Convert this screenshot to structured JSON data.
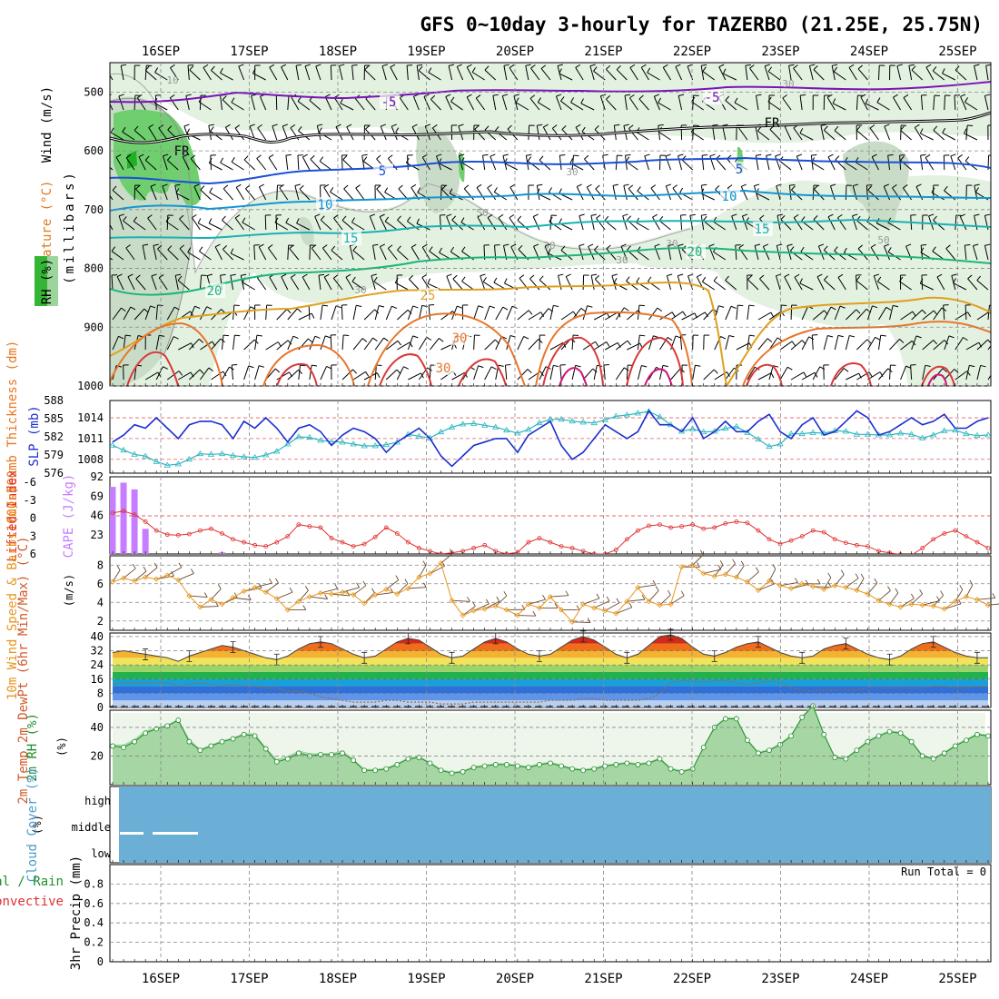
{
  "title": "GFS 0~10day 3-hourly for TAZERBO (21.25E, 25.75N)",
  "colors": {
    "grid": "#888888",
    "slp": "#1b2fcf",
    "thickness": "#2db6c0",
    "cape": "#c77dff",
    "lifted_index": "#e03030",
    "wind10": "#e8961e",
    "barb": "#6b4a2e",
    "rh2m": "#1f8f2a",
    "rh_fill": "#88c98c",
    "cloud": "#6baed6",
    "dewpoint_line": "#9b6b3a"
  },
  "chart_data": [
    {
      "panel": "upper-air",
      "type": "contour",
      "x_dates": [
        "16SEP",
        "17SEP",
        "18SEP",
        "19SEP",
        "20SEP",
        "21SEP",
        "22SEP",
        "23SEP",
        "24SEP",
        "25SEP"
      ],
      "ylabel": "(millibars)",
      "side_labels": {
        "wind": "Wind (m/s)",
        "temperature": "Temperature (°C)",
        "rh": "RH (%)"
      },
      "yticks": [
        500,
        600,
        700,
        800,
        900,
        1000
      ],
      "ylim": [
        450,
        1000
      ],
      "freezing_label": "FR",
      "isotherm_labels": [
        "-5",
        "-5",
        "5",
        "5",
        "10",
        "10",
        "15",
        "15",
        "20",
        "20",
        "25",
        "30",
        "30"
      ],
      "rh_labels": [
        "10",
        "30",
        "30",
        "30",
        "30",
        "30",
        "50",
        "50",
        "30"
      ]
    },
    {
      "panel": "slp-thickness",
      "type": "line",
      "left_label": "1000-500mb Thickness (dm)",
      "right_label": "SLP (mb)",
      "thickness_ticks": [
        576,
        579,
        582,
        585,
        588
      ],
      "thickness_ylim": [
        576,
        588
      ],
      "slp_ticks": [
        1008,
        1011,
        1014
      ],
      "slp_ylim": [
        1006,
        1016.5
      ],
      "series": [
        {
          "name": "SLP (mb)",
          "values": [
            1010.5,
            1011.5,
            1013,
            1012.5,
            1014,
            1012.5,
            1011,
            1013,
            1013.5,
            1013.5,
            1013,
            1011,
            1013.5,
            1012.5,
            1014,
            1012.5,
            1010.5,
            1012.5,
            1013,
            1012,
            1010,
            1011.5,
            1012.5,
            1012,
            1011,
            1009,
            1010.5,
            1011.5,
            1012.5,
            1011,
            1008.5,
            1007,
            1008.5,
            1010,
            1010.5,
            1011,
            1011,
            1009,
            1011.5,
            1012.5,
            1013.5,
            1010,
            1008,
            1009,
            1011,
            1013,
            1012,
            1011,
            1012,
            1015,
            1013,
            1013,
            1012,
            1014,
            1011,
            1012,
            1013.5,
            1012,
            1012,
            1013.5,
            1014.5,
            1012,
            1011,
            1013,
            1014,
            1011.5,
            1012,
            1013.5,
            1015,
            1014,
            1011.5,
            1012,
            1013,
            1014,
            1013,
            1013.5,
            1014.5,
            1012.5,
            1012.5,
            1013.5,
            1014
          ]
        },
        {
          "name": "1000-500mb Thickness (dm)",
          "values": [
            580.6,
            579.8,
            579.1,
            578.8,
            577.9,
            577.3,
            577.5,
            578.3,
            579.2,
            579.1,
            579.2,
            578.9,
            578.7,
            578.6,
            579,
            579.6,
            580.8,
            582,
            581.9,
            581.4,
            581.2,
            581.1,
            580.8,
            580.5,
            580.5,
            580.7,
            581.1,
            582.4,
            582.1,
            581.8,
            582.8,
            583.6,
            584.1,
            584.2,
            583.9,
            583.6,
            583.1,
            582.6,
            583.2,
            584.3,
            584.9,
            584.9,
            584.6,
            584.4,
            584.3,
            584.8,
            585.4,
            585.6,
            585.9,
            586.2,
            585.3,
            584,
            582.9,
            583.3,
            582.8,
            582.9,
            583.4,
            583.7,
            582.7,
            581.6,
            580.4,
            580.8,
            582.5,
            582.5,
            582.7,
            582.6,
            583,
            582.9,
            582.4,
            582.4,
            582.3,
            582.3,
            582.6,
            582.4,
            581.8,
            582.3,
            583,
            583.1,
            582.5,
            582.2,
            582.3
          ]
        }
      ]
    },
    {
      "panel": "cape-li",
      "type": "bar+line",
      "left_label": "Lifted Index",
      "right_label": "CAPE (J/kg)",
      "li_ticks": [
        "-6",
        "-3",
        "0",
        "3",
        "6"
      ],
      "cape_ticks": [
        23,
        46,
        69,
        92
      ],
      "cape_ylim": [
        0,
        92
      ],
      "cape_values": [
        80,
        85,
        77,
        30,
        0,
        0,
        0,
        0,
        0,
        0,
        2,
        0,
        0,
        0,
        0,
        0,
        0,
        0,
        0,
        0,
        0,
        0,
        0,
        0,
        0,
        0,
        0,
        0,
        0,
        0,
        0,
        0,
        0,
        0,
        0,
        0,
        0,
        0,
        0,
        0,
        0,
        0,
        0,
        0,
        0,
        0,
        0,
        0,
        0,
        0,
        0,
        0,
        0,
        0,
        0,
        0,
        0,
        0,
        0,
        0,
        0,
        0,
        0,
        0,
        0,
        0,
        0,
        0,
        0,
        0,
        0,
        0,
        0,
        0,
        0,
        0,
        0,
        0,
        0,
        0,
        0
      ],
      "li_values": [
        -0.5,
        -0.8,
        -0.2,
        1,
        2.5,
        3.2,
        3.3,
        3.1,
        2.5,
        2.2,
        3,
        4,
        4.5,
        5,
        5.2,
        4.5,
        3.5,
        1.5,
        1.8,
        2,
        3.8,
        4.5,
        5.2,
        4.8,
        3.6,
        2,
        3,
        4.5,
        5.5,
        6,
        6.5,
        6.3,
        6,
        5.5,
        5,
        6,
        6.5,
        6.2,
        4.5,
        3.8,
        4.5,
        5.2,
        5.5,
        6,
        6.5,
        6.5,
        5.8,
        4,
        2.5,
        1.7,
        1.5,
        2,
        1.8,
        1.5,
        2.2,
        2,
        1.3,
        1,
        1.2,
        2.5,
        4,
        4.8,
        4.2,
        3.5,
        2.5,
        2.8,
        4,
        4.6,
        5,
        5.2,
        6,
        6.3,
        6.6,
        6.7,
        5.5,
        4,
        3,
        2.5,
        3.5,
        4.5,
        5.5
      ]
    },
    {
      "panel": "wind10m",
      "type": "line",
      "label": "10m Wind Speed & Barbs (m/s)",
      "yticks": [
        2,
        4,
        6,
        8
      ],
      "ylim": [
        1,
        9
      ],
      "values": [
        6.2,
        6.6,
        6.3,
        6.7,
        6.5,
        6.9,
        6.4,
        4.7,
        3.5,
        4.3,
        3.8,
        4.5,
        5.2,
        5.6,
        5.1,
        4.4,
        3.2,
        4.1,
        4.6,
        5,
        4.9,
        5.1,
        4.8,
        3.9,
        4.8,
        5.4,
        4.9,
        5.5,
        6.7,
        7.1,
        8.2,
        4.2,
        2.6,
        3.1,
        3.3,
        3.6,
        3.2,
        2.6,
        3.8,
        3.4,
        4.6,
        3.2,
        1.9,
        3.8,
        3.4,
        3.1,
        2.8,
        4.1,
        5.6,
        4.1,
        3.7,
        3.8,
        7.8,
        8.0,
        7.1,
        6.8,
        7.0,
        6.7,
        6.2,
        5.3,
        6.3,
        5.8,
        5.5,
        6.0,
        5.7,
        5.4,
        5.8,
        5.6,
        5.3,
        4.9,
        4.2,
        3.8,
        3.5,
        3.8,
        3.7,
        3.6,
        3.3,
        4.1,
        4.6,
        4.3,
        3.7
      ]
    },
    {
      "panel": "temp2m",
      "type": "area",
      "label": "2m Temp 2m DewPt (6hr Min/Max) (°C)",
      "yticks": [
        0,
        8,
        16,
        24,
        32,
        40
      ],
      "ylim": [
        0,
        42
      ],
      "temp_values": [
        31,
        32,
        31,
        30,
        29,
        28,
        26,
        29,
        31,
        33,
        35,
        34,
        32,
        30,
        28,
        27,
        29,
        33,
        36,
        37,
        36,
        33,
        30,
        28,
        29,
        33,
        37,
        39,
        38,
        34,
        30,
        28,
        29,
        33,
        37,
        39,
        37,
        33,
        30,
        29,
        30,
        34,
        38,
        40,
        38,
        34,
        30,
        28,
        30,
        35,
        40,
        41,
        39,
        34,
        30,
        29,
        31,
        34,
        36,
        37,
        34,
        31,
        29,
        28,
        29,
        33,
        35,
        36,
        33,
        30,
        28,
        27,
        29,
        33,
        36,
        37,
        34,
        31,
        29,
        28,
        28
      ],
      "dewpt_values": [
        13,
        14,
        14,
        14,
        14,
        14,
        12,
        13,
        14,
        13,
        12,
        13,
        12,
        12,
        11,
        11,
        9,
        9,
        8,
        6,
        5,
        4,
        3,
        3,
        3,
        4,
        4,
        3,
        3,
        3,
        2,
        2,
        2,
        3,
        3,
        3,
        3,
        3,
        3,
        3,
        4,
        4,
        4,
        5,
        5,
        4,
        4,
        4,
        4,
        5,
        8,
        14,
        15,
        15,
        14,
        15,
        15,
        14,
        13,
        14,
        15,
        14,
        11,
        10,
        9,
        10,
        10,
        10,
        10,
        11,
        11,
        11,
        11,
        11,
        11,
        12,
        12,
        11,
        11,
        12,
        12
      ]
    },
    {
      "panel": "rh2m",
      "type": "area",
      "label": "2m RH (%)",
      "yticks": [
        20,
        40
      ],
      "ylim": [
        0,
        52
      ],
      "values": [
        27,
        26,
        30,
        36,
        39,
        41,
        45,
        30,
        24,
        27,
        30,
        32,
        35,
        34,
        25,
        16,
        18,
        22,
        20,
        21,
        21,
        22,
        17,
        10,
        10,
        11,
        14,
        18,
        19,
        15,
        10,
        8,
        9,
        12,
        13,
        14,
        14,
        13,
        12,
        14,
        15,
        13,
        11,
        10,
        11,
        13,
        14,
        15,
        14,
        15,
        18,
        11,
        9,
        11,
        26,
        40,
        46,
        46,
        31,
        22,
        24,
        28,
        34,
        47,
        55,
        35,
        19,
        18,
        24,
        30,
        34,
        37,
        36,
        30,
        20,
        18,
        22,
        27,
        31,
        35,
        34
      ],
      "fill_values": [
        28,
        28,
        32,
        38,
        40,
        42,
        46,
        32,
        25,
        28,
        31,
        33,
        36,
        36,
        26,
        18,
        20,
        24,
        22,
        22,
        22,
        24,
        18,
        11,
        11,
        12,
        15,
        19,
        20,
        16,
        11,
        9,
        10,
        13,
        14,
        15,
        15,
        14,
        13,
        15,
        16,
        14,
        12,
        11,
        12,
        14,
        15,
        16,
        15,
        16,
        19,
        12,
        10,
        12,
        27,
        41,
        47,
        47,
        32,
        23,
        25,
        29,
        35,
        48,
        56,
        36,
        20,
        19,
        25,
        31,
        35,
        38,
        37,
        31,
        21,
        19,
        23,
        28,
        32,
        36,
        35
      ]
    },
    {
      "panel": "cloud",
      "type": "heatmap",
      "label": "Cloud Cover (%)",
      "levels": [
        "high",
        "middle",
        "low"
      ],
      "values_percent": 0
    },
    {
      "panel": "precip",
      "type": "bar",
      "label": "3hr Precip (mm)",
      "legend_total": "Total / Rain",
      "legend_conv": "Convective",
      "run_total": "Run Total = 0",
      "yticks": [
        "0",
        "0.2",
        "0.4",
        "0.6",
        "0.8"
      ],
      "ylim": [
        0,
        1.0
      ],
      "values": [
        0
      ]
    }
  ]
}
